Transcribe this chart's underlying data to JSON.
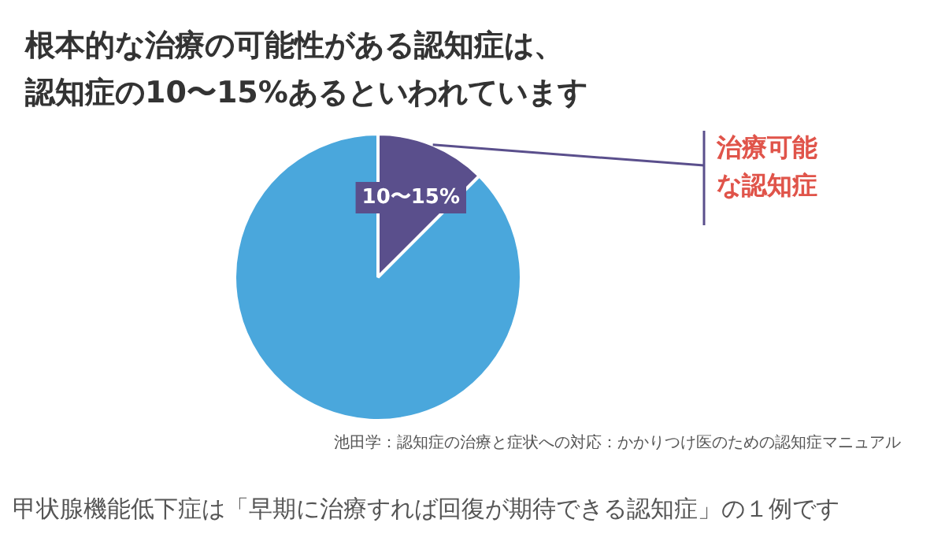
{
  "chart_data": {
    "type": "pie",
    "title": "根本的な治療の可能性がある認知症は、認知症の10〜15%あるといわれています",
    "categories": [
      "治療可能な認知症",
      null
    ],
    "values": [
      12.5,
      87.5
    ],
    "colors": [
      "#5a4f8c",
      "#4aa7dc"
    ],
    "legend": false,
    "annotations": [
      "池田学：認知症の治療と症状への対応：かかりつけ医のための認知症マニュアル",
      "甲状腺機能低下症は「早期に治療すれば回復が期待できる認知症」の１例です",
      {
        "text": "10〜15%",
        "x": "治療可能な認知症"
      }
    ]
  }
}
